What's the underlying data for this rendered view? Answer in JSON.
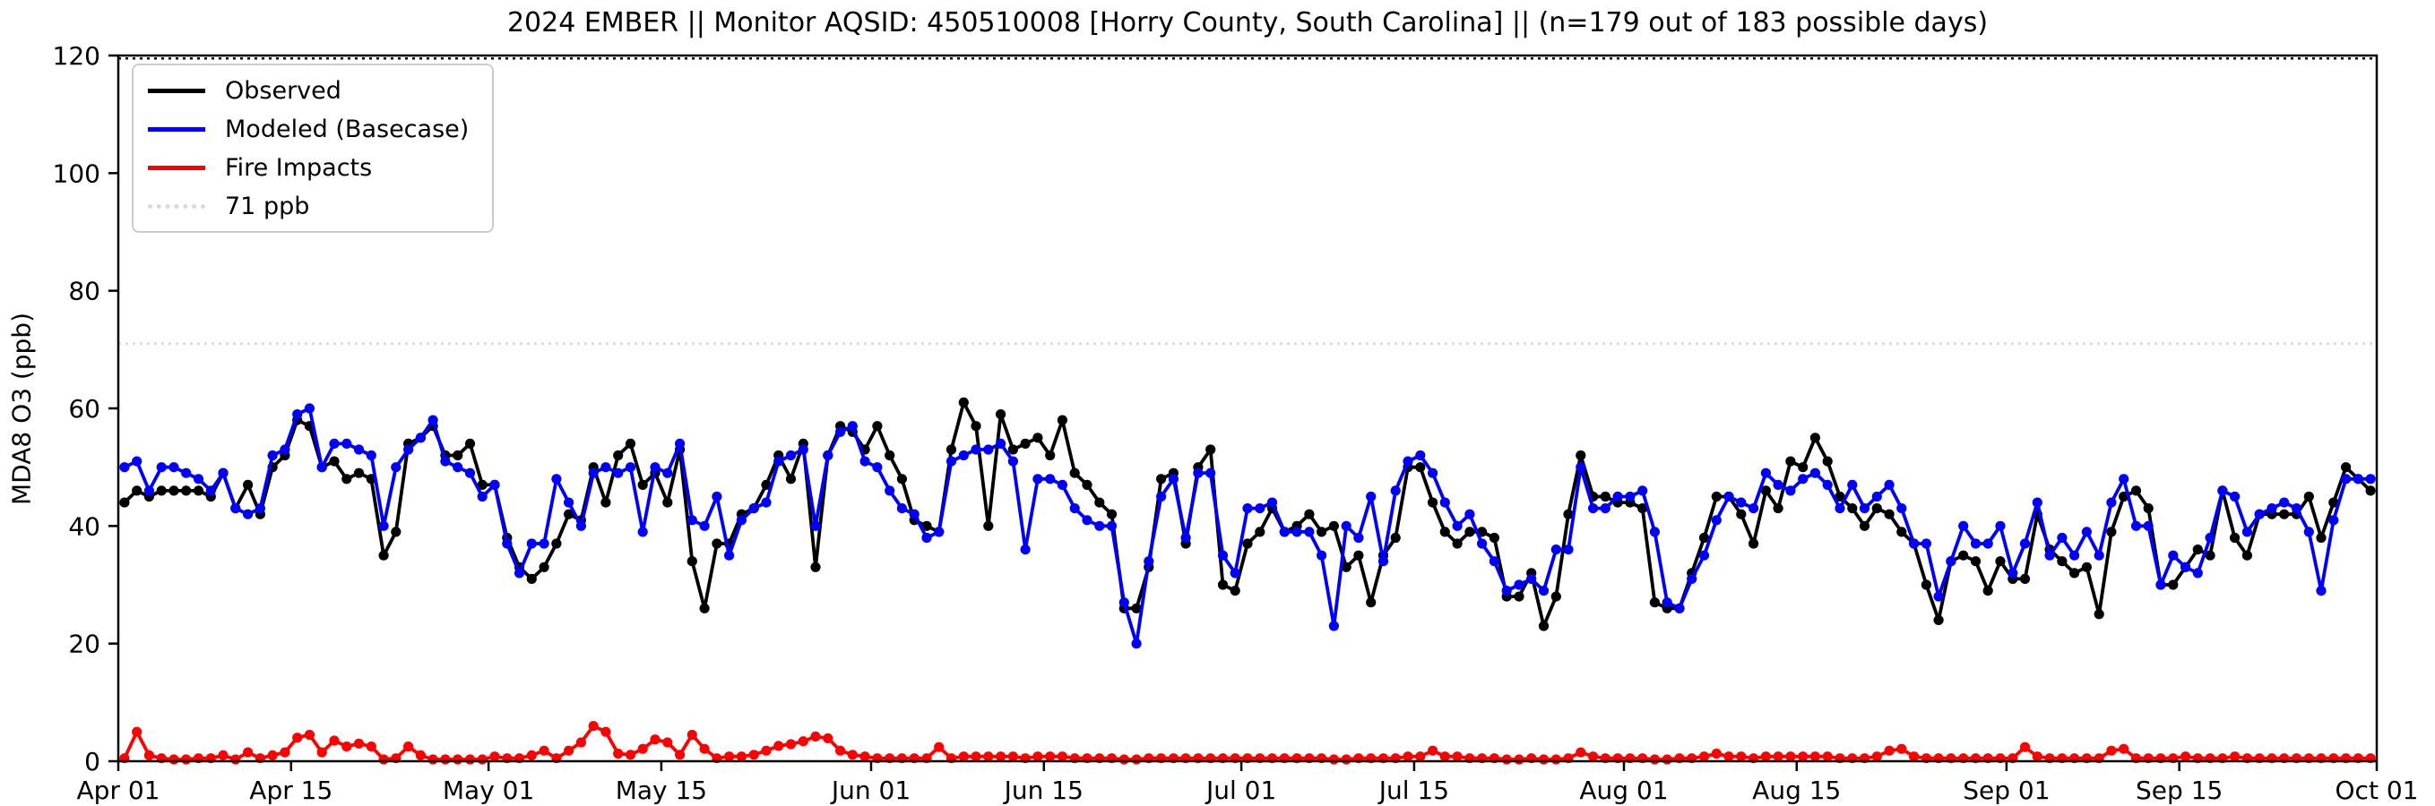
{
  "title": "2024 EMBER || Monitor AQSID: 450510008 [Horry County, South Carolina] || (n=179 out of 183 possible days)",
  "axes": {
    "ylabel": "MDA8 O3 (ppb)",
    "yticks": [
      0,
      20,
      40,
      60,
      80,
      100,
      120
    ],
    "ylim": [
      0,
      120
    ],
    "xtick_labels": [
      "Apr 01",
      "Apr 15",
      "May 01",
      "May 15",
      "Jun 01",
      "Jun 15",
      "Jul 01",
      "Jul 15",
      "Aug 01",
      "Aug 15",
      "Sep 01",
      "Sep 15",
      "Oct 01"
    ],
    "xtick_days": [
      0,
      14,
      30,
      44,
      61,
      75,
      91,
      105,
      122,
      136,
      153,
      167,
      183
    ],
    "total_days": 183
  },
  "legend": [
    {
      "label": "Observed",
      "color": "#000000",
      "dashed": false
    },
    {
      "label": "Modeled (Basecase)",
      "color": "#0000ff",
      "dashed": false
    },
    {
      "label": "Fire Impacts",
      "color": "#ff0000",
      "dashed": false
    },
    {
      "label": "71 ppb",
      "color": "#d9d9d9",
      "dashed": true
    }
  ],
  "chart_data": {
    "type": "line",
    "title": "2024 EMBER || Monitor AQSID: 450510008 [Horry County, South Carolina] || (n=179 out of 183 possible days)",
    "xlabel": "",
    "ylabel": "MDA8 O3 (ppb)",
    "x_unit": "days from Apr 01 2024 (daily values, Apr 01 - Sep 30)",
    "x_range_days": [
      0,
      183
    ],
    "ylim": [
      0,
      120
    ],
    "grid": false,
    "legend_position": "upper left",
    "reference_lines": [
      {
        "label": "71 ppb",
        "value": 71,
        "color": "#d9d9d9",
        "style": "dotted"
      },
      {
        "label": "upper dotted line",
        "value": 119.5,
        "color": "#000000",
        "style": "dotted"
      }
    ],
    "series": [
      {
        "name": "Observed",
        "color": "#000000",
        "marker": "circle",
        "values": [
          44,
          46,
          45,
          46,
          46,
          46,
          46,
          45,
          49,
          43,
          47,
          42,
          50,
          52,
          58,
          57,
          50,
          51,
          48,
          49,
          48,
          35,
          39,
          54,
          55,
          57,
          52,
          52,
          54,
          47,
          47,
          38,
          33,
          31,
          33,
          37,
          42,
          41,
          50,
          44,
          52,
          54,
          47,
          49,
          44,
          53,
          34,
          26,
          37,
          37,
          42,
          43,
          47,
          52,
          48,
          54,
          33,
          52,
          57,
          56,
          53,
          57,
          52,
          48,
          41,
          40,
          39,
          53,
          61,
          57,
          40,
          59,
          53,
          54,
          55,
          52,
          58,
          49,
          47,
          44,
          42,
          26,
          26,
          33,
          48,
          49,
          37,
          50,
          53,
          30,
          29,
          37,
          39,
          43,
          39,
          40,
          42,
          39,
          40,
          33,
          35,
          27,
          35,
          38,
          50,
          50,
          44,
          39,
          37,
          39,
          39,
          38,
          28,
          28,
          32,
          23,
          28,
          42,
          52,
          45,
          45,
          44,
          44,
          43,
          27,
          26,
          26,
          32,
          38,
          45,
          45,
          42,
          37,
          46,
          43,
          51,
          50,
          55,
          51,
          45,
          43,
          40,
          43,
          42,
          39,
          37,
          30,
          24,
          34,
          35,
          34,
          29,
          34,
          31,
          31,
          42,
          36,
          34,
          32,
          33,
          25,
          39,
          45,
          46,
          43,
          30,
          30,
          33,
          36,
          35,
          46,
          38,
          35,
          42,
          42,
          42,
          42,
          45,
          38,
          44,
          50,
          48,
          46
        ]
      },
      {
        "name": "Modeled (Basecase)",
        "color": "#0000ff",
        "marker": "circle",
        "values": [
          50,
          51,
          46,
          50,
          50,
          49,
          48,
          46,
          49,
          43,
          42,
          43,
          52,
          53,
          59,
          60,
          50,
          54,
          54,
          53,
          52,
          40,
          50,
          53,
          55,
          58,
          51,
          50,
          49,
          45,
          47,
          37,
          32,
          37,
          37,
          48,
          44,
          40,
          49,
          50,
          49,
          50,
          39,
          50,
          49,
          54,
          41,
          40,
          45,
          35,
          41,
          43,
          44,
          51,
          52,
          53,
          40,
          52,
          56,
          57,
          51,
          50,
          46,
          43,
          42,
          38,
          39,
          51,
          52,
          53,
          53,
          54,
          51,
          36,
          48,
          48,
          47,
          43,
          41,
          40,
          40,
          27,
          20,
          34,
          45,
          48,
          38,
          49,
          49,
          35,
          32,
          43,
          43,
          44,
          39,
          39,
          39,
          35,
          23,
          40,
          38,
          45,
          34,
          46,
          51,
          52,
          49,
          44,
          40,
          42,
          37,
          34,
          29,
          30,
          31,
          29,
          36,
          36,
          50,
          43,
          43,
          45,
          45,
          46,
          39,
          27,
          26,
          31,
          35,
          41,
          45,
          44,
          43,
          49,
          47,
          46,
          48,
          49,
          47,
          43,
          47,
          43,
          45,
          47,
          43,
          37,
          37,
          28,
          34,
          40,
          37,
          37,
          40,
          32,
          37,
          44,
          35,
          38,
          35,
          39,
          35,
          44,
          48,
          40,
          40,
          30,
          35,
          33,
          32,
          38,
          46,
          45,
          39,
          42,
          43,
          44,
          43,
          39,
          29,
          41,
          48,
          48,
          48
        ]
      },
      {
        "name": "Fire Impacts",
        "color": "#ff0000",
        "marker": "circle",
        "values": [
          0.5,
          5,
          1,
          0.5,
          0.3,
          0.3,
          0.5,
          0.5,
          1,
          0.3,
          1.5,
          0.5,
          1,
          1.5,
          4,
          4.5,
          1.5,
          3.5,
          2.5,
          3,
          2.5,
          0.3,
          0.5,
          2.5,
          1,
          0.3,
          0.3,
          0.3,
          0.3,
          0.3,
          0.8,
          0.5,
          0.5,
          1,
          1.8,
          0.5,
          1.8,
          3.2,
          6,
          5,
          1.3,
          1.1,
          2.1,
          3.7,
          3.2,
          1.1,
          4.5,
          2.1,
          0.5,
          0.8,
          0.8,
          1.1,
          1.8,
          2.6,
          2.9,
          3.4,
          4.2,
          3.9,
          1.8,
          1.1,
          0.8,
          0.5,
          0.5,
          0.5,
          0.5,
          0.5,
          2.4,
          0.5,
          0.8,
          0.8,
          0.8,
          0.8,
          0.8,
          0.5,
          0.8,
          0.8,
          0.8,
          0.5,
          0.5,
          0.5,
          0.5,
          0.3,
          0.3,
          0.5,
          0.5,
          0.5,
          0.5,
          0.5,
          0.5,
          0.5,
          0.5,
          0.5,
          0.5,
          0.5,
          0.5,
          0.5,
          0.5,
          0.5,
          0.3,
          0.3,
          0.5,
          0.5,
          0.5,
          0.5,
          0.8,
          0.8,
          1.8,
          0.8,
          0.8,
          0.5,
          0.5,
          0.5,
          0.3,
          0.3,
          0.5,
          0.3,
          0.3,
          0.5,
          1.5,
          0.8,
          0.5,
          0.5,
          0.5,
          0.5,
          0.3,
          0.3,
          0.5,
          0.5,
          0.8,
          1.3,
          0.8,
          0.8,
          0.5,
          0.8,
          0.8,
          0.8,
          0.8,
          0.8,
          0.8,
          0.5,
          0.5,
          0.5,
          0.8,
          1.8,
          2.1,
          0.8,
          0.5,
          0.5,
          0.5,
          0.5,
          0.5,
          0.5,
          0.5,
          0.5,
          2.4,
          0.8,
          0.5,
          0.5,
          0.5,
          0.5,
          0.5,
          1.8,
          2.1,
          0.5,
          0.5,
          0.5,
          0.5,
          0.8,
          0.5,
          0.5,
          0.5,
          0.8,
          0.5,
          0.5,
          0.5,
          0.5,
          0.5,
          0.5,
          0.5,
          0.5,
          0.5,
          0.5,
          0.5
        ]
      }
    ]
  }
}
